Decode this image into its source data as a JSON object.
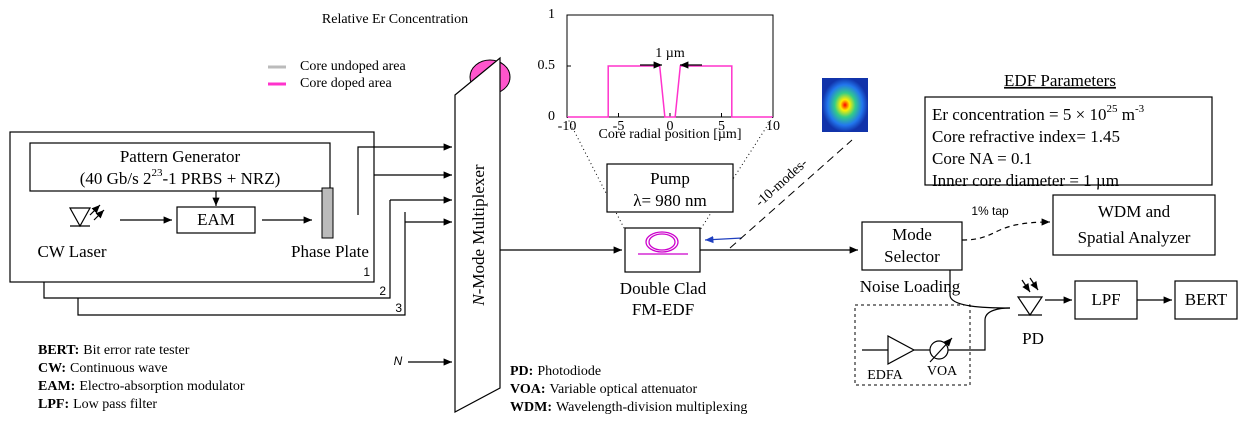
{
  "inset": {
    "type": "line",
    "title": "Relative Er Concentration",
    "xlabel": "Core radial position [µm]",
    "annotation": "1 µm",
    "x": [
      -10,
      -6,
      -6,
      -1,
      -0.5,
      0.5,
      1,
      6,
      6,
      10
    ],
    "values": [
      0,
      0,
      0.5,
      0.5,
      0,
      0,
      0.5,
      0.5,
      0,
      0
    ],
    "xlim": [
      -10,
      10
    ],
    "ylim": [
      0,
      1
    ],
    "xticks": [
      -10,
      -5,
      0,
      5,
      10
    ],
    "yticks": [
      0,
      0.5,
      1
    ],
    "color": "#ff33cc"
  },
  "legend": [
    {
      "label": "Core undoped area",
      "color": "#bbbbbb"
    },
    {
      "label": "Core doped area",
      "color": "#ff33cc"
    }
  ],
  "edf_parameters": {
    "title": "EDF Parameters",
    "lines": [
      [
        "Er concentration = 5 × 10",
        "25",
        " m",
        "-3"
      ],
      [
        "Core refractive index= 1.45"
      ],
      [
        "Core NA = 0.1"
      ],
      [
        "Inner core diameter = 1 µm"
      ]
    ]
  },
  "transmitter": {
    "pattern_generator": "Pattern Generator",
    "pattern_spec": [
      "(40 Gb/s 2",
      "23",
      "-1 PRBS + NRZ)"
    ],
    "eam": "EAM",
    "laser": "CW Laser",
    "phase_plate": "Phase Plate",
    "channels": [
      "1",
      "2",
      "3",
      "N"
    ]
  },
  "multiplexer": [
    "N",
    "-Mode Multiplexer"
  ],
  "pump": [
    "Pump",
    "λ= 980 nm"
  ],
  "modes_label": "-10-modes-",
  "edf": [
    "Double Clad",
    "FM-EDF"
  ],
  "receiver": {
    "mode_selector": [
      "Mode",
      "Selector"
    ],
    "tap": "1% tap",
    "analyzer": [
      "WDM and",
      "Spatial Analyzer"
    ],
    "noise_loading": "Noise Loading",
    "edfa": "EDFA",
    "voa": "VOA",
    "pd": "PD",
    "lpf": "LPF",
    "bert": "BERT"
  },
  "glossary": [
    {
      "term": "BERT:",
      "definition": "Bit error rate tester"
    },
    {
      "term": "CW:",
      "definition": "Continuous wave"
    },
    {
      "term": "EAM:",
      "definition": "Electro-absorption modulator"
    },
    {
      "term": "LPF:",
      "definition": "Low pass filter"
    },
    {
      "term": "PD:",
      "definition": "Photodiode"
    },
    {
      "term": "VOA:",
      "definition": "Variable optical attenuator"
    },
    {
      "term": "WDM:",
      "definition": "Wavelength-division multiplexing"
    }
  ]
}
